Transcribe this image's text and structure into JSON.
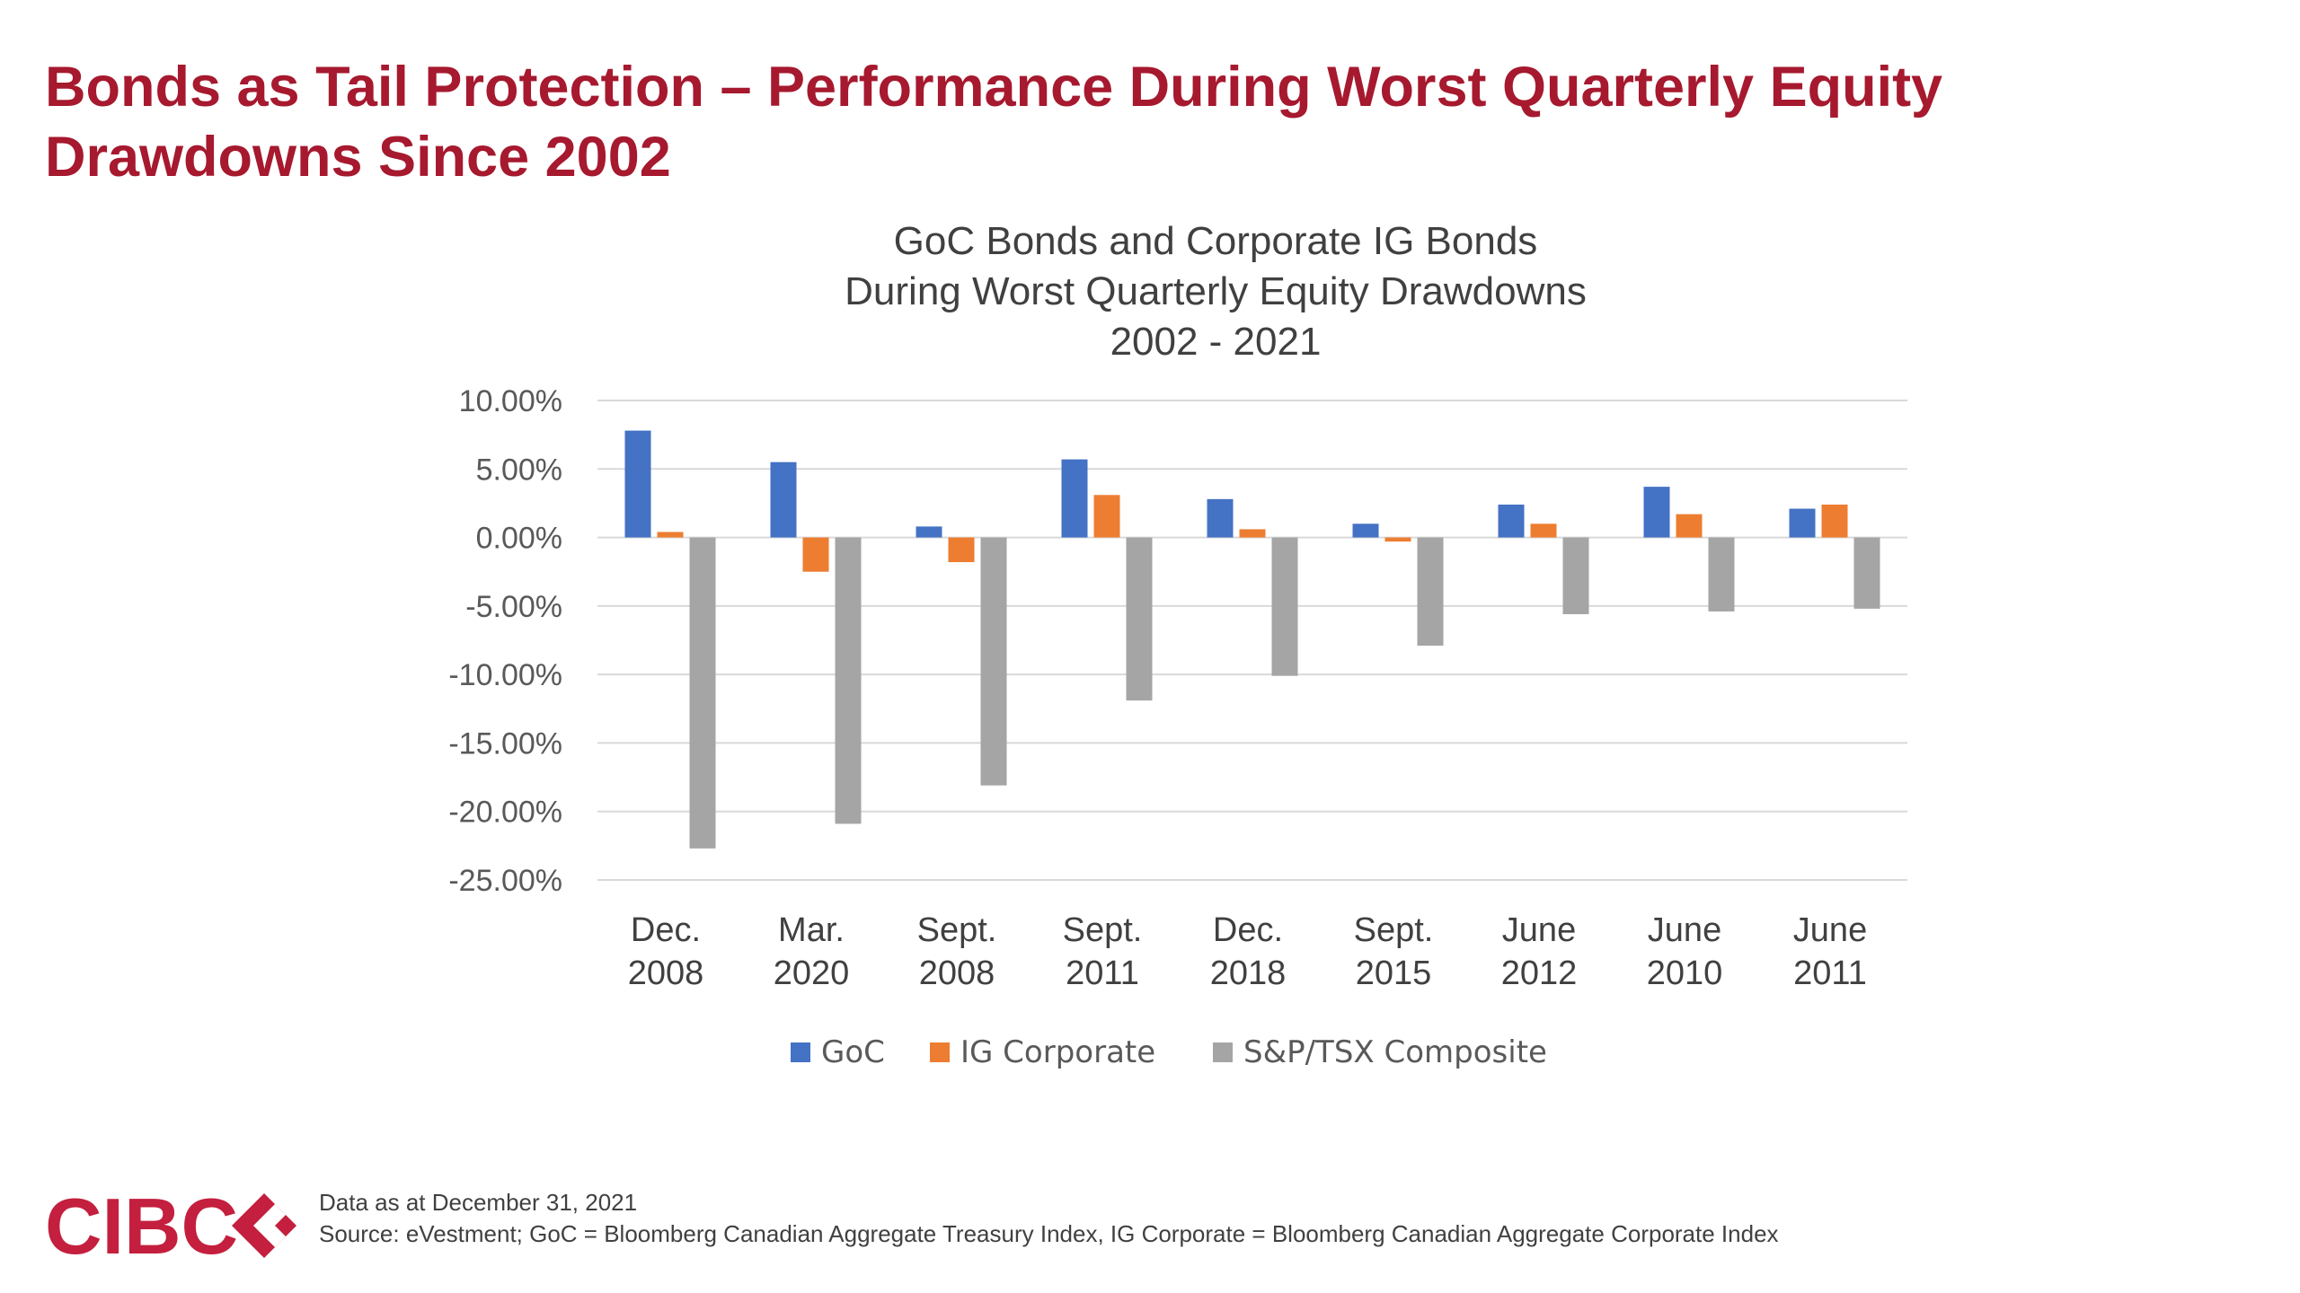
{
  "slide": {
    "title_line1": "Bonds as Tail Protection – Performance During Worst Quarterly Equity",
    "title_line2": "Drawdowns Since 2002",
    "accent_color": "#A6192E"
  },
  "footer": {
    "data_note": "Data as at December 31, 2021",
    "source": "Source: eVestment; GoC = Bloomberg Canadian Aggregate Treasury Index, IG Corporate = Bloomberg Canadian Aggregate Corporate Index"
  },
  "logo": {
    "text": "CIBC",
    "color": "#C41F3E"
  },
  "chart_data": {
    "type": "bar",
    "title_lines": [
      "GoC Bonds and Corporate IG Bonds",
      "During Worst Quarterly Equity Drawdowns",
      "2002 - 2021"
    ],
    "categories": [
      [
        "Dec.",
        "2008"
      ],
      [
        "Mar.",
        "2020"
      ],
      [
        "Sept.",
        "2008"
      ],
      [
        "Sept.",
        "2011"
      ],
      [
        "Dec.",
        "2018"
      ],
      [
        "Sept.",
        "2015"
      ],
      [
        "June",
        "2012"
      ],
      [
        "June",
        "2010"
      ],
      [
        "June",
        "2011"
      ]
    ],
    "series": [
      {
        "name": "GoC",
        "color": "#4472C4",
        "values": [
          7.8,
          5.5,
          0.8,
          5.7,
          2.8,
          1.0,
          2.4,
          3.7,
          2.1
        ]
      },
      {
        "name": "IG Corporate",
        "color": "#ED7D31",
        "values": [
          0.4,
          -2.5,
          -1.8,
          3.1,
          0.6,
          -0.3,
          1.0,
          1.7,
          2.4
        ]
      },
      {
        "name": "S&P/TSX Composite",
        "color": "#A5A5A5",
        "values": [
          -22.7,
          -20.9,
          -18.1,
          -11.9,
          -10.1,
          -7.9,
          -5.6,
          -5.4,
          -5.2
        ]
      }
    ],
    "yticks": [
      "10.00%",
      "5.00%",
      "0.00%",
      "-5.00%",
      "-10.00%",
      "-15.00%",
      "-20.00%",
      "-25.00%"
    ],
    "ylim": [
      -25,
      10
    ],
    "grid": true,
    "legend_position": "bottom"
  }
}
